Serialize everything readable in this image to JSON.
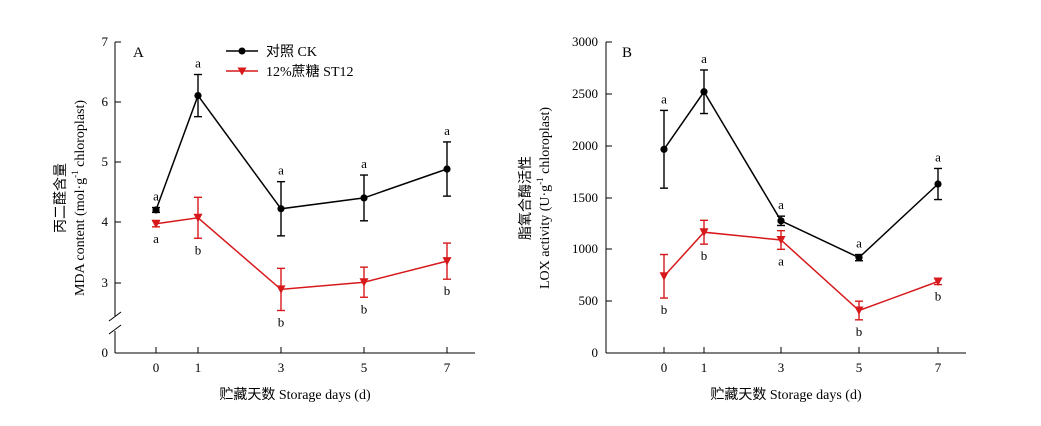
{
  "colors": {
    "ck": "#000000",
    "st12": "#d7191c"
  },
  "chart_data": [
    {
      "type": "line",
      "panel_label": "A",
      "x": [
        0,
        1,
        3,
        5,
        7
      ],
      "x_ticks": [
        "0",
        "1",
        "3",
        "5",
        "7"
      ],
      "xlabel": "贮藏天数 Storage days (d)",
      "ylabel_cn": "丙二醛含量",
      "ylabel_en_pre": "MDA content (mol·g",
      "ylabel_en_sup": "-1",
      "ylabel_en_post": " chloroplast)",
      "y_ticks": [
        "0",
        "3",
        "4",
        "5",
        "6",
        "7"
      ],
      "y_axis_break": true,
      "ylim": [
        2.5,
        7
      ],
      "legend": {
        "placement": "top-left",
        "entries": [
          "对照 CK",
          "12%蔗糖 ST12"
        ]
      },
      "grid": false,
      "series": [
        {
          "name": "对照 CK",
          "values": [
            4.2,
            6.1,
            4.22,
            4.4,
            4.88
          ],
          "errors": [
            0.04,
            0.35,
            0.45,
            0.38,
            0.45
          ],
          "sig": [
            "a",
            "a",
            "a",
            "a",
            "a"
          ],
          "marker": "circle"
        },
        {
          "name": "12%蔗糖 ST12",
          "values": [
            3.97,
            4.07,
            2.88,
            3.0,
            3.35
          ],
          "errors": [
            0.05,
            0.34,
            0.35,
            0.25,
            0.3
          ],
          "sig": [
            "a",
            "b",
            "b",
            "b",
            "b"
          ],
          "marker": "triangle-down"
        }
      ]
    },
    {
      "type": "line",
      "panel_label": "B",
      "x": [
        0,
        1,
        3,
        5,
        7
      ],
      "x_ticks": [
        "0",
        "1",
        "3",
        "5",
        "7"
      ],
      "xlabel": "贮藏天数 Storage days (d)",
      "ylabel_cn": "脂氧合酶活性",
      "ylabel_en_pre": "LOX activity (U·g",
      "ylabel_en_sup": "-1",
      "ylabel_en_post": " chloroplast)",
      "y_ticks": [
        "0",
        "500",
        "1000",
        "1500",
        "2000",
        "2500",
        "3000"
      ],
      "ylim": [
        0,
        3000
      ],
      "grid": false,
      "series": [
        {
          "name": "对照 CK",
          "values": [
            1965,
            2520,
            1275,
            920,
            1630
          ],
          "errors": [
            375,
            210,
            45,
            30,
            150
          ],
          "sig": [
            "a",
            "a",
            "a",
            "a",
            "a"
          ],
          "marker": "circle"
        },
        {
          "name": "12%蔗糖 ST12",
          "values": [
            740,
            1165,
            1090,
            410,
            690
          ],
          "errors": [
            210,
            115,
            90,
            90,
            30
          ],
          "sig": [
            "b",
            "b",
            "a",
            "b",
            "b"
          ],
          "marker": "triangle-down"
        }
      ]
    }
  ]
}
